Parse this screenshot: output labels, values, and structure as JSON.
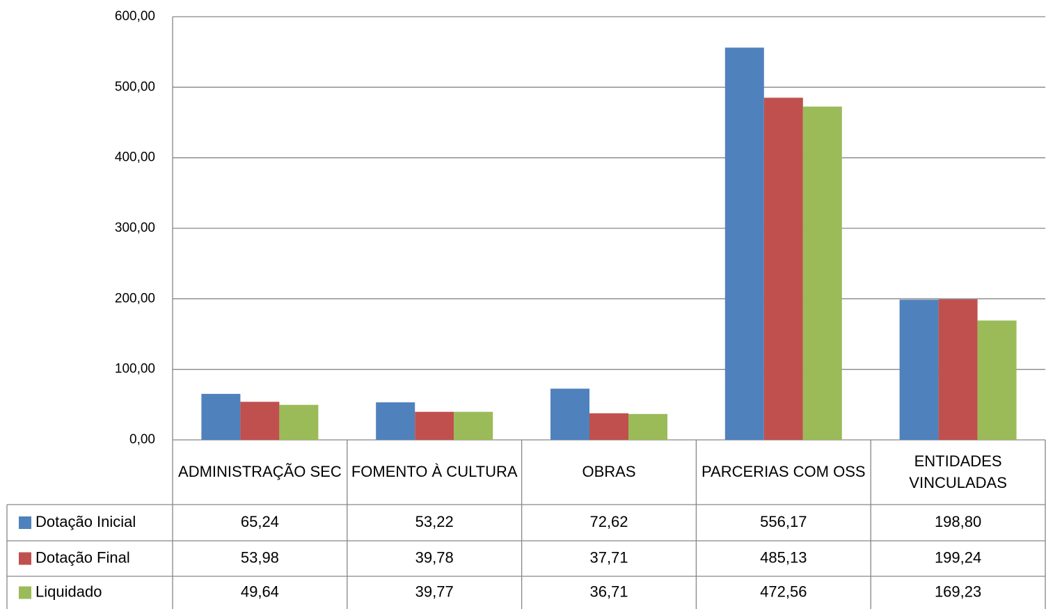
{
  "chart_data": {
    "type": "bar",
    "categories": [
      "ADMINISTRAÇÃO SEC",
      "FOMENTO À CULTURA",
      "OBRAS",
      "PARCERIAS COM OSS",
      "ENTIDADES VINCULADAS"
    ],
    "series": [
      {
        "name": "Dotação Inicial",
        "color": "#4f81bd",
        "values": [
          65.24,
          53.22,
          72.62,
          556.17,
          198.8
        ],
        "value_labels": [
          "65,24",
          "53,22",
          "72,62",
          "556,17",
          "198,80"
        ]
      },
      {
        "name": "Dotação Final",
        "color": "#c0504d",
        "values": [
          53.98,
          39.78,
          37.71,
          485.13,
          199.24
        ],
        "value_labels": [
          "53,98",
          "39,78",
          "37,71",
          "485,13",
          "199,24"
        ]
      },
      {
        "name": "Liquidado",
        "color": "#9bbb59",
        "values": [
          49.64,
          39.77,
          36.71,
          472.56,
          169.23
        ],
        "value_labels": [
          "49,64",
          "39,77",
          "36,71",
          "472,56",
          "169,23"
        ]
      }
    ],
    "ylim": [
      0,
      600
    ],
    "yticks": [
      {
        "value": 0,
        "label": "0,00"
      },
      {
        "value": 100,
        "label": "100,00"
      },
      {
        "value": 200,
        "label": "200,00"
      },
      {
        "value": 300,
        "label": "300,00"
      },
      {
        "value": 400,
        "label": "400,00"
      },
      {
        "value": 500,
        "label": "500,00"
      },
      {
        "value": 600,
        "label": "600,00"
      }
    ],
    "grid": true
  }
}
